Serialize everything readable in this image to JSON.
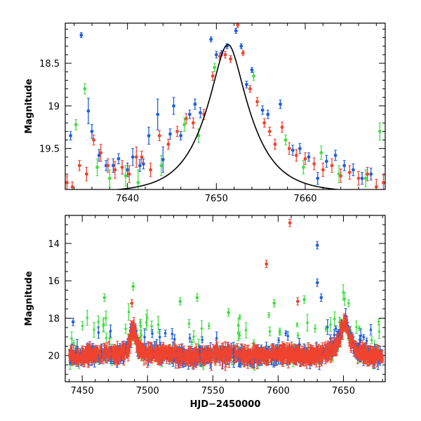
{
  "chart_data": [
    {
      "type": "scatter",
      "panel": "top",
      "xlabel": "",
      "ylabel": "Magnitude",
      "xlim": [
        7633,
        7669
      ],
      "ylim": [
        19.98,
        18.03
      ],
      "y_inverted": true,
      "x_ticks": [
        7640,
        7650,
        7660
      ],
      "y_ticks": [
        18.5,
        19,
        19.5
      ],
      "colors": {
        "blue": "#1f5fe0",
        "red": "#f0432e",
        "green": "#44dd44",
        "model": "#000000"
      },
      "model_curve": {
        "label": "",
        "peak_x": 7651.3,
        "peak_y": 18.28,
        "baseline_y": 20.02,
        "tE": 4.3,
        "u0": 0.34
      },
      "series": [
        {
          "color": "blue",
          "points": [
            [
              7633.6,
              19.35,
              0.05
            ],
            [
              7634.8,
              18.17,
              0.03
            ],
            [
              7635.6,
              19.06,
              0.15
            ],
            [
              7636.0,
              19.3,
              0.08
            ],
            [
              7636.8,
              19.58,
              0.07
            ],
            [
              7637.6,
              19.7,
              0.06
            ],
            [
              7638.4,
              19.7,
              0.08
            ],
            [
              7639.0,
              19.62,
              0.06
            ],
            [
              7640.0,
              19.75,
              0.08
            ],
            [
              7640.6,
              19.6,
              0.1
            ],
            [
              7641.4,
              19.7,
              0.07
            ],
            [
              7641.8,
              19.68,
              0.06
            ],
            [
              7642.4,
              19.35,
              0.1
            ],
            [
              7643.4,
              19.1,
              0.18
            ],
            [
              7644.0,
              19.63,
              0.15
            ],
            [
              7644.8,
              19.33,
              0.06
            ],
            [
              7645.2,
              19.0,
              0.1
            ],
            [
              7646.0,
              19.35,
              0.05
            ],
            [
              7647.0,
              19.1,
              0.05
            ],
            [
              7647.6,
              18.98,
              0.06
            ],
            [
              7648.2,
              19.08,
              0.06
            ],
            [
              7649.4,
              18.22,
              0.03
            ],
            [
              7650.0,
              18.4,
              0.04
            ],
            [
              7650.6,
              18.38,
              0.03
            ],
            [
              7651.2,
              18.3,
              0.03
            ],
            [
              7652.2,
              18.12,
              0.03
            ],
            [
              7652.8,
              18.3,
              0.03
            ],
            [
              7653.4,
              18.75,
              0.04
            ],
            [
              7654.0,
              18.58,
              0.03
            ],
            [
              7655.2,
              19.05,
              0.05
            ],
            [
              7655.8,
              19.1,
              0.05
            ],
            [
              7657.2,
              18.98,
              0.05
            ],
            [
              7658.6,
              19.52,
              0.06
            ],
            [
              7659.4,
              19.5,
              0.06
            ],
            [
              7660.4,
              19.6,
              0.05
            ],
            [
              7661.4,
              19.85,
              0.07
            ],
            [
              7662.4,
              19.65,
              0.07
            ],
            [
              7663.4,
              19.58,
              0.06
            ],
            [
              7664.4,
              19.7,
              0.06
            ],
            [
              7665.4,
              19.75,
              0.07
            ],
            [
              7666.4,
              19.85,
              0.07
            ],
            [
              7667.4,
              19.8,
              0.07
            ]
          ]
        },
        {
          "color": "red",
          "points": [
            [
              7633.2,
              19.9,
              0.08
            ],
            [
              7633.8,
              19.95,
              0.06
            ],
            [
              7634.6,
              19.7,
              0.06
            ],
            [
              7635.4,
              19.8,
              0.08
            ],
            [
              7636.2,
              19.4,
              0.06
            ],
            [
              7637.0,
              19.55,
              0.1
            ],
            [
              7637.8,
              19.7,
              0.08
            ],
            [
              7638.6,
              19.75,
              0.1
            ],
            [
              7639.4,
              19.72,
              0.08
            ],
            [
              7640.2,
              19.8,
              0.1
            ],
            [
              7641.0,
              19.6,
              0.12
            ],
            [
              7641.6,
              19.6,
              0.07
            ],
            [
              7642.6,
              19.75,
              0.08
            ],
            [
              7643.6,
              19.35,
              0.06
            ],
            [
              7644.6,
              19.45,
              0.06
            ],
            [
              7645.6,
              19.3,
              0.06
            ],
            [
              7646.6,
              19.15,
              0.06
            ],
            [
              7647.4,
              19.2,
              0.06
            ],
            [
              7648.6,
              19.1,
              0.06
            ],
            [
              7649.6,
              18.65,
              0.05
            ],
            [
              7650.4,
              18.42,
              0.04
            ],
            [
              7651.0,
              18.4,
              0.04
            ],
            [
              7651.6,
              18.45,
              0.04
            ],
            [
              7652.4,
              18.05,
              0.03
            ],
            [
              7653.0,
              18.38,
              0.03
            ],
            [
              7653.8,
              18.8,
              0.04
            ],
            [
              7654.6,
              18.95,
              0.05
            ],
            [
              7655.4,
              19.2,
              0.05
            ],
            [
              7656.0,
              19.3,
              0.05
            ],
            [
              7656.6,
              19.45,
              0.06
            ],
            [
              7657.4,
              19.25,
              0.06
            ],
            [
              7658.2,
              19.5,
              0.07
            ],
            [
              7659.0,
              19.58,
              0.07
            ],
            [
              7660.0,
              19.62,
              0.07
            ],
            [
              7661.0,
              19.68,
              0.07
            ],
            [
              7662.0,
              19.75,
              0.08
            ],
            [
              7663.0,
              19.7,
              0.08
            ],
            [
              7664.0,
              19.82,
              0.08
            ],
            [
              7665.0,
              19.78,
              0.08
            ],
            [
              7666.0,
              19.85,
              0.08
            ],
            [
              7667.0,
              19.8,
              0.08
            ],
            [
              7668.0,
              19.95,
              0.09
            ],
            [
              7668.8,
              19.9,
              0.09
            ]
          ]
        },
        {
          "color": "green",
          "points": [
            [
              7634.2,
              19.22,
              0.06
            ],
            [
              7635.2,
              18.8,
              0.06
            ],
            [
              7636.6,
              19.72,
              0.1
            ],
            [
              7638.0,
              19.85,
              0.1
            ],
            [
              7639.8,
              19.82,
              0.12
            ],
            [
              7641.2,
              19.9,
              0.15
            ],
            [
              7643.8,
              19.7,
              0.12
            ],
            [
              7646.4,
              19.22,
              0.08
            ],
            [
              7648.0,
              19.35,
              0.08
            ],
            [
              7649.8,
              18.55,
              0.05
            ],
            [
              7654.2,
              18.65,
              0.05
            ],
            [
              7657.8,
              19.4,
              0.06
            ],
            [
              7659.8,
              19.72,
              0.08
            ],
            [
              7661.8,
              19.55,
              0.08
            ],
            [
              7663.8,
              19.8,
              0.1
            ],
            [
              7666.8,
              19.85,
              0.1
            ],
            [
              7668.4,
              19.3,
              0.1
            ]
          ]
        }
      ]
    },
    {
      "type": "scatter",
      "panel": "bottom",
      "xlabel": "HJD−2450000",
      "ylabel": "Magnitude",
      "xlim": [
        7437,
        7682
      ],
      "ylim": [
        21.4,
        12.5
      ],
      "y_inverted": true,
      "x_ticks": [
        7450,
        7500,
        7550,
        7600,
        7650
      ],
      "y_ticks": [
        14,
        16,
        18,
        20
      ],
      "baseline_mag": 20.0,
      "bump_events": [
        {
          "x": 7489,
          "peak_mag": 18.5,
          "width": 3
        },
        {
          "x": 7651,
          "peak_mag": 18.3,
          "width": 4
        }
      ],
      "outliers": [
        {
          "color": "red",
          "x": 7609,
          "y": 12.9
        },
        {
          "color": "red",
          "x": 7591,
          "y": 15.1
        },
        {
          "color": "red",
          "x": 7615,
          "y": 17.1
        },
        {
          "color": "red",
          "x": 7488,
          "y": 17.2
        },
        {
          "color": "blue",
          "x": 7630,
          "y": 14.1
        },
        {
          "color": "blue",
          "x": 7630,
          "y": 16.1
        },
        {
          "color": "blue",
          "x": 7633,
          "y": 16.9
        },
        {
          "color": "blue",
          "x": 7443,
          "y": 18.2
        },
        {
          "color": "green",
          "x": 7467,
          "y": 16.9
        },
        {
          "color": "green",
          "x": 7489,
          "y": 16.3
        },
        {
          "color": "green",
          "x": 7525,
          "y": 17.1
        },
        {
          "color": "green",
          "x": 7538,
          "y": 16.9
        },
        {
          "color": "green",
          "x": 7562,
          "y": 17.7
        },
        {
          "color": "green",
          "x": 7597,
          "y": 17.2
        },
        {
          "color": "green",
          "x": 7620,
          "y": 17.0
        }
      ]
    }
  ]
}
